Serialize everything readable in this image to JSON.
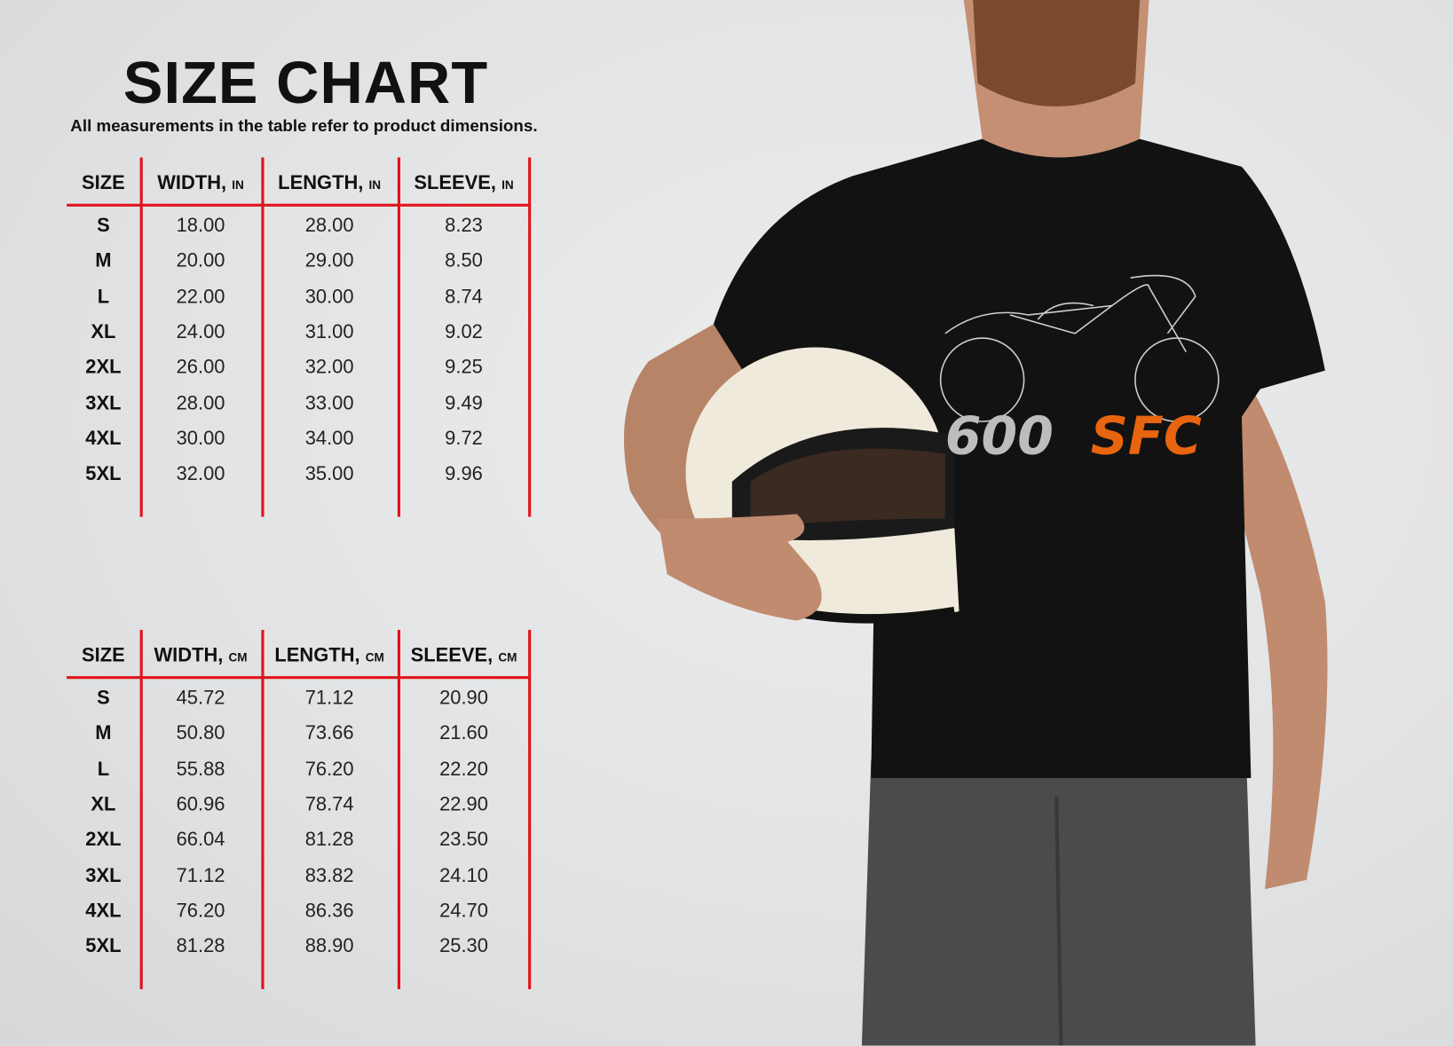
{
  "title": "SIZE CHART",
  "subtitle": "All measurements in the table refer to product dimensions.",
  "tables": [
    {
      "headers": [
        {
          "label": "SIZE",
          "unit": ""
        },
        {
          "label": "WIDTH,",
          "unit": "IN"
        },
        {
          "label": "LENGTH,",
          "unit": "IN"
        },
        {
          "label": "SLEEVE,",
          "unit": "IN"
        }
      ],
      "rows": [
        [
          "S",
          "18.00",
          "28.00",
          "8.23"
        ],
        [
          "M",
          "20.00",
          "29.00",
          "8.50"
        ],
        [
          "L",
          "22.00",
          "30.00",
          "8.74"
        ],
        [
          "XL",
          "24.00",
          "31.00",
          "9.02"
        ],
        [
          "2XL",
          "26.00",
          "32.00",
          "9.25"
        ],
        [
          "3XL",
          "28.00",
          "33.00",
          "9.49"
        ],
        [
          "4XL",
          "30.00",
          "34.00",
          "9.72"
        ],
        [
          "5XL",
          "32.00",
          "35.00",
          "9.96"
        ]
      ]
    },
    {
      "headers": [
        {
          "label": "SIZE",
          "unit": ""
        },
        {
          "label": "WIDTH,",
          "unit": "CM"
        },
        {
          "label": "LENGTH,",
          "unit": "CM"
        },
        {
          "label": "SLEEVE,",
          "unit": "CM"
        }
      ],
      "rows": [
        [
          "S",
          "45.72",
          "71.12",
          "20.90"
        ],
        [
          "M",
          "50.80",
          "73.66",
          "21.60"
        ],
        [
          "L",
          "55.88",
          "76.20",
          "22.20"
        ],
        [
          "XL",
          "60.96",
          "78.74",
          "22.90"
        ],
        [
          "2XL",
          "66.04",
          "81.28",
          "23.50"
        ],
        [
          "3XL",
          "71.12",
          "83.82",
          "24.10"
        ],
        [
          "4XL",
          "76.20",
          "86.36",
          "24.70"
        ],
        [
          "5XL",
          "81.28",
          "88.90",
          "25.30"
        ]
      ]
    }
  ],
  "shirt_print": {
    "number": "600",
    "letters": "SFC"
  },
  "colors": {
    "grid_lines": "#e0141b",
    "print_orange": "#e8650f",
    "shirt": "#121212",
    "background": "#e4e5e7"
  }
}
